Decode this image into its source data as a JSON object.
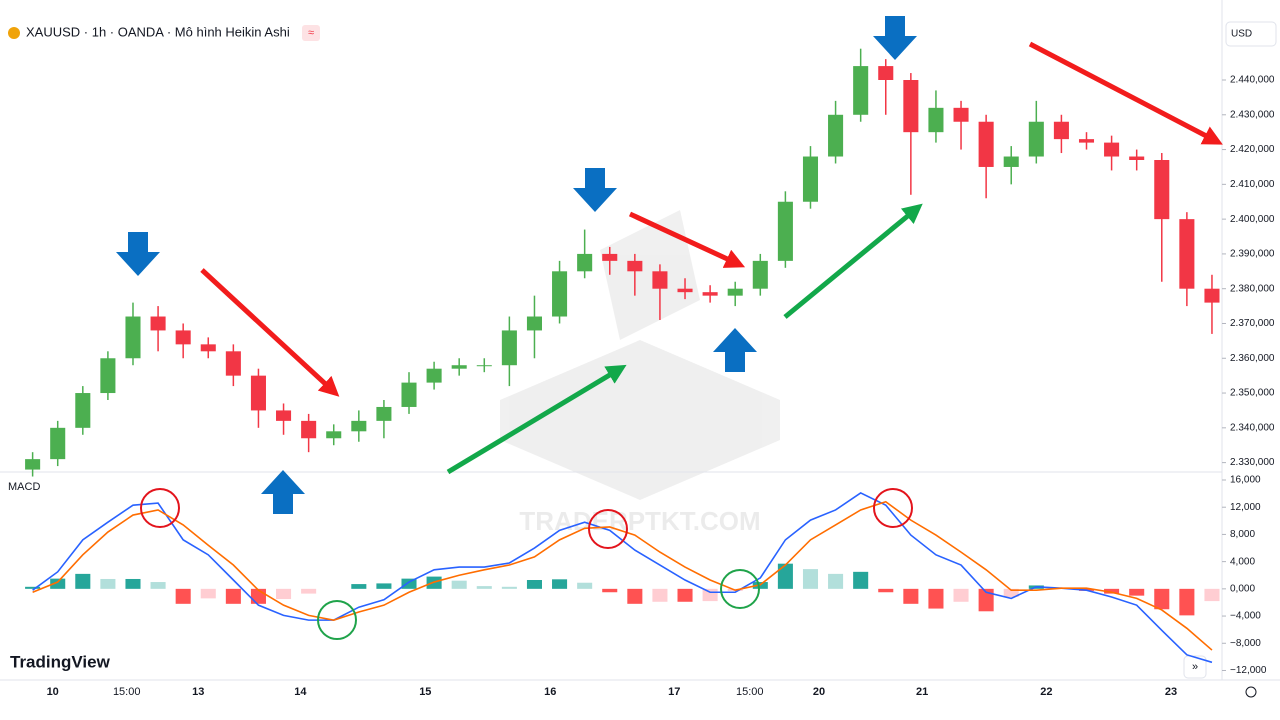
{
  "chart_data": [
    {
      "type": "candlestick",
      "title": "XAUUSD · 1h · OANDA · Mô hình Heikin Ashi",
      "currency": "USD",
      "watermark": "TRADERPTKT.COM",
      "brand": "TradingView",
      "up_color": "#4caf50",
      "down_color": "#f23645",
      "x": [
        0,
        1,
        2,
        3,
        4,
        5,
        6,
        7,
        8,
        9,
        10,
        11,
        12,
        13,
        14,
        15,
        16,
        17,
        18,
        19,
        20,
        21,
        22,
        23,
        24,
        25,
        26,
        27,
        28,
        29,
        30,
        31,
        32,
        33,
        34,
        35,
        36,
        37,
        38,
        39,
        40,
        41,
        42,
        43,
        44,
        45,
        46,
        47
      ],
      "open": [
        2328,
        2331,
        2340,
        2350,
        2360,
        2372,
        2368,
        2364,
        2362,
        2355,
        2345,
        2342,
        2337,
        2339,
        2342,
        2346,
        2353,
        2357,
        2358,
        2358,
        2368,
        2372,
        2385,
        2390,
        2388,
        2385,
        2380,
        2379,
        2378,
        2380,
        2388,
        2405,
        2418,
        2430,
        2444,
        2440,
        2425,
        2432,
        2428,
        2415,
        2418,
        2428,
        2423,
        2422,
        2418,
        2417,
        2400,
        2380
      ],
      "high": [
        2333,
        2342,
        2352,
        2362,
        2376,
        2375,
        2370,
        2366,
        2364,
        2357,
        2347,
        2344,
        2341,
        2345,
        2348,
        2356,
        2359,
        2360,
        2360,
        2372,
        2378,
        2388,
        2397,
        2392,
        2390,
        2387,
        2383,
        2381,
        2382,
        2390,
        2408,
        2421,
        2434,
        2449,
        2446,
        2442,
        2437,
        2434,
        2430,
        2421,
        2434,
        2430,
        2425,
        2424,
        2420,
        2419,
        2402,
        2384
      ],
      "low": [
        2326,
        2329,
        2338,
        2348,
        2358,
        2362,
        2360,
        2360,
        2352,
        2340,
        2338,
        2333,
        2335,
        2336,
        2337,
        2344,
        2351,
        2355,
        2356,
        2352,
        2360,
        2370,
        2383,
        2384,
        2378,
        2371,
        2377,
        2376,
        2375,
        2378,
        2386,
        2403,
        2416,
        2428,
        2430,
        2407,
        2422,
        2420,
        2406,
        2410,
        2416,
        2419,
        2420,
        2414,
        2414,
        2382,
        2375,
        2367
      ],
      "close": [
        2331,
        2340,
        2350,
        2360,
        2372,
        2368,
        2364,
        2362,
        2355,
        2345,
        2342,
        2337,
        2339,
        2342,
        2346,
        2353,
        2357,
        2358,
        2358,
        2368,
        2372,
        2385,
        2390,
        2388,
        2385,
        2380,
        2379,
        2378,
        2380,
        2388,
        2405,
        2418,
        2430,
        2444,
        2440,
        2425,
        2432,
        2428,
        2415,
        2418,
        2428,
        2423,
        2422,
        2418,
        2417,
        2400,
        2380,
        2376
      ],
      "xlim": [
        -1.3,
        47.4
      ],
      "xticks": [
        {
          "value": 0.8,
          "label": "10"
        },
        {
          "value": 3.75,
          "label": "15:00"
        },
        {
          "value": 6.6,
          "label": "13"
        },
        {
          "value": 10.67,
          "label": "14"
        },
        {
          "value": 15.65,
          "label": "15"
        },
        {
          "value": 20.63,
          "label": "16"
        },
        {
          "value": 25.57,
          "label": "17"
        },
        {
          "value": 28.58,
          "label": "15:00"
        },
        {
          "value": 31.34,
          "label": "20"
        },
        {
          "value": 35.45,
          "label": "21"
        },
        {
          "value": 40.4,
          "label": "22"
        },
        {
          "value": 45.37,
          "label": "23"
        }
      ],
      "ylim": [
        2325,
        2463
      ],
      "yticks": [
        {
          "value": 2330,
          "label": "2.330,000"
        },
        {
          "value": 2340,
          "label": "2.340,000"
        },
        {
          "value": 2350,
          "label": "2.350,000"
        },
        {
          "value": 2360,
          "label": "2.360,000"
        },
        {
          "value": 2370,
          "label": "2.370,000"
        },
        {
          "value": 2380,
          "label": "2.380,000"
        },
        {
          "value": 2390,
          "label": "2.390,000"
        },
        {
          "value": 2400,
          "label": "2.400,000"
        },
        {
          "value": 2410,
          "label": "2.410,000"
        },
        {
          "value": 2420,
          "label": "2.420,000"
        },
        {
          "value": 2430,
          "label": "2.430,000"
        },
        {
          "value": 2440,
          "label": "2.440,000"
        }
      ]
    },
    {
      "type": "macd",
      "title": "MACD",
      "series": [
        {
          "color": "#2962ff",
          "values": [
            -200,
            2500,
            7200,
            9800,
            12300,
            12600,
            7200,
            5000,
            1300,
            -2400,
            -3900,
            -4600,
            -4600,
            -2700,
            -1600,
            1000,
            2800,
            3200,
            3200,
            3800,
            6000,
            8600,
            9800,
            8600,
            5700,
            3500,
            1300,
            -500,
            -500,
            1600,
            7200,
            10100,
            11600,
            14100,
            12300,
            7900,
            5000,
            3500,
            -500,
            -1400,
            300,
            100,
            -200,
            -1200,
            -2400,
            -6100,
            -9700,
            -10800
          ]
        },
        {
          "color": "#ff6d00",
          "values": [
            -500,
            1000,
            5000,
            8350,
            10850,
            11600,
            9400,
            6400,
            3500,
            -200,
            -2400,
            -3900,
            -4600,
            -3400,
            -2400,
            -500,
            1000,
            2000,
            2800,
            3500,
            4700,
            7200,
            8900,
            9100,
            7900,
            5400,
            3200,
            1300,
            -200,
            600,
            3500,
            7200,
            9400,
            11600,
            12800,
            10100,
            7900,
            5400,
            2800,
            -200,
            -200,
            100,
            100,
            -500,
            -1400,
            -3100,
            -5800,
            -9000
          ]
        }
      ],
      "histogram": [
        300,
        1500,
        2200,
        1450,
        1450,
        1000,
        -2200,
        -1400,
        -2200,
        -2200,
        -1500,
        -700,
        0,
        700,
        800,
        1500,
        1800,
        1200,
        400,
        300,
        1300,
        1400,
        900,
        -500,
        -2200,
        -1900,
        -1900,
        -1800,
        -300,
        1000,
        3700,
        2900,
        2200,
        2500,
        -500,
        -2200,
        -2900,
        -1900,
        -3300,
        -1200,
        500,
        0,
        -300,
        -700,
        -1000,
        -3000,
        -3900,
        -1800
      ],
      "histogram_colors": {
        "up_rising": "#26a69a",
        "up_falling": "#b2dfdb",
        "down_falling": "#ff5252",
        "down_rising": "#ffcdd2"
      },
      "ylim": [
        -13400,
        16000
      ],
      "yticks": [
        {
          "value": 16000,
          "label": "16,000"
        },
        {
          "value": 12000,
          "label": "12,000"
        },
        {
          "value": 8000,
          "label": "8,000"
        },
        {
          "value": 4000,
          "label": "4,000"
        },
        {
          "value": 0,
          "label": "0,000"
        },
        {
          "value": -4000,
          "label": "−4,000"
        },
        {
          "value": -8000,
          "label": "−8,000"
        },
        {
          "value": -12000,
          "label": "−12,000"
        }
      ]
    }
  ]
}
